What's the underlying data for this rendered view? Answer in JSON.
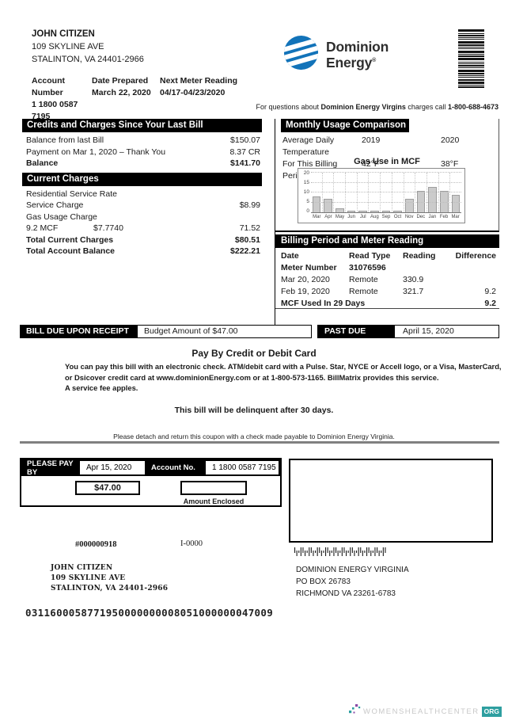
{
  "customer": {
    "name": "JOHN CITIZEN",
    "address_line1": "109 SKYLINE AVE",
    "address_line2": "STALINTON, VA 24401-2966"
  },
  "account_header": {
    "account_number_label": "Account Number",
    "account_number_line1": "1 1800 0587",
    "account_number_line2": "7195",
    "date_prepared_label": "Date Prepared",
    "date_prepared": "March 22, 2020",
    "next_meter_label": "Next Meter Reading",
    "next_meter": "04/17-04/23/2020"
  },
  "brand": {
    "name_line1": "Dominion",
    "name_line2": "Energy",
    "registered_mark": "®"
  },
  "questions_line": {
    "prefix": "For questions about ",
    "brand": "Dominion Energy Virgins",
    "middle": " charges call ",
    "phone": "1-800-688-4673"
  },
  "credits_section": {
    "title": "Credits and Charges Since Your Last Bill",
    "rows": [
      {
        "label": "Balance from last Bill",
        "value": "$150.07",
        "bold": false
      },
      {
        "label": "Payment on Mar 1, 2020 – Thank You",
        "value": "8.37 CR",
        "bold": false
      },
      {
        "label": "Balance",
        "value": "$141.70",
        "bold": true
      }
    ]
  },
  "current_section": {
    "title": "Current Charges",
    "rows": [
      {
        "label": "Residential Service Rate",
        "value": "",
        "bold": false
      },
      {
        "label": "Service Charge",
        "value": "$8.99",
        "bold": false
      },
      {
        "label": "Gas Usage Charge",
        "value": "",
        "bold": false
      },
      {
        "label": "9.2 MCF",
        "mid": "$7.7740",
        "value": "71.52",
        "bold": false
      },
      {
        "label": "Total Current Charges",
        "value": "$80.51",
        "bold": true
      },
      {
        "label": "Total Account Balance",
        "value": "$222.21",
        "bold": true
      }
    ]
  },
  "usage_section": {
    "title": "Monthly Usage Comparison",
    "temp_row_label": "Average Daily Temperature",
    "year_left": "2019",
    "year_right": "2020",
    "period_row_label": "For This Billing Period",
    "temp_left": "42°F",
    "temp_right": "38°F",
    "chart_title": "Gas Use in MCF"
  },
  "chart_data": {
    "type": "bar",
    "title": "Gas Use in MCF",
    "categories": [
      "Mar",
      "Apr",
      "May",
      "Jun",
      "Jul",
      "Aug",
      "Sep",
      "Oct",
      "Nov",
      "Dec",
      "Jan",
      "Feb",
      "Mar"
    ],
    "values": [
      8,
      7,
      2,
      1,
      1,
      1,
      1,
      1,
      7,
      11,
      13,
      11,
      9
    ],
    "xlabel": "",
    "ylabel": "",
    "ylim": [
      0,
      20
    ],
    "yticks": [
      0,
      5,
      10,
      15,
      20
    ],
    "bar_color": "#cbcbcb",
    "grid": "dotted",
    "legend": "none"
  },
  "billing_section": {
    "title": "Billing Period and Meter Reading",
    "col_headers": [
      "Date",
      "Read Type",
      "Reading",
      "Difference"
    ],
    "meter_number_label": "Meter Number",
    "meter_number": "31076596",
    "rows": [
      {
        "date": "Mar 20, 2020",
        "read_type": "Remote",
        "reading": "330.9",
        "difference": ""
      },
      {
        "date": "Feb 19, 2020",
        "read_type": "Remote",
        "reading": "321.7",
        "difference": "9.2"
      }
    ],
    "total_label": "MCF Used In 29 Days",
    "total_value": "9.2"
  },
  "due_bar": {
    "due_label": "BILL DUE UPON RECEIPT",
    "budget": "Budget Amount of $47.00",
    "past_due_label": "PAST DUE AFTER",
    "past_due_date": "April 15, 2020"
  },
  "pay_section": {
    "title": "Pay By Credit or Debit Card",
    "lines": [
      "You can pay this bill with an electronic check. ATM/debit card with a Pulse. Star, NYCE or Accell logo, or a Visa, MasterCard,",
      "or Dsicover credit card at www.dominionEnergy.com or at 1-800-573-1165. BillMatrix provides this service.",
      "A service fee apples."
    ],
    "delinquent_note": "This bill will be delinquent after 30 days."
  },
  "detach_note": "Please detach and return this coupon with a check made payable to Dominion Energy Virginia.",
  "coupon": {
    "pay_by_label": "PLEASE PAY BY",
    "pay_by_date": "Apr 15, 2020",
    "account_label": "Account No.",
    "account_value": "1 1800 0587 7195",
    "amount": "$47.00",
    "amount_enclosed_label": "Amount Enclosed",
    "ref_number": "#000000918",
    "form_code": "I-0000"
  },
  "remit_from": {
    "name": "JOHN CITIZEN",
    "address_line1": "109 SKYLINE AVE",
    "address_line2": "STALINTON, VA 24401-2966"
  },
  "remit_to": {
    "line1": "DOMINION ENERGY VIRGINIA",
    "line2": "PO BOX 26783",
    "line3": "RICHMOND VA 23261-6783"
  },
  "ocr_line": "0311600058771950000000008051000000047009",
  "watermark": {
    "text": "WOMENSHEALTHCENTER",
    "badge": "ORG"
  },
  "icons": {
    "logo": "dominion-energy-logo",
    "top_barcode": "stacked-barcode",
    "imb": "intelligent-mail-barcode",
    "watermark_dots": "sparkle-dots"
  },
  "colors": {
    "brand_blue": "#1273b9",
    "chart_bar": "#cbcbcb",
    "rule_gray": "#808080",
    "watermark_teal": "#2e9fa0",
    "watermark_purple": "#8a4ba8"
  }
}
